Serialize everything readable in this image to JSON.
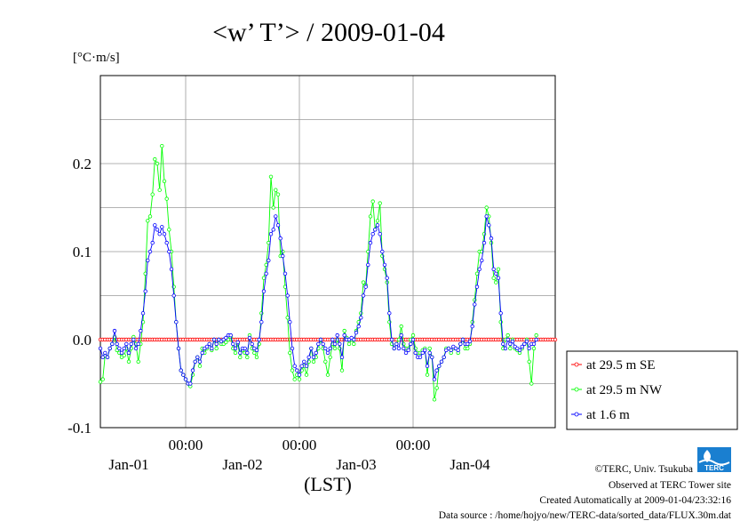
{
  "chart_data": {
    "type": "line",
    "title": "<w’ T’> / 2009-01-04",
    "ylabel": "[°C·m/s]",
    "xlabel": "(LST)",
    "ylim": [
      -0.1,
      0.3
    ],
    "yticks": [
      -0.1,
      0.0,
      0.1,
      0.2
    ],
    "ytick_labels": [
      "-0.1",
      "0.0",
      "0.1",
      "0.2"
    ],
    "x_unit": "hours since 2009-01-01 00:00 LST",
    "xlim": [
      -18,
      78
    ],
    "xticks": [
      0,
      24,
      48
    ],
    "xtick_labels": [
      "00:00",
      "00:00",
      "00:00"
    ],
    "day_labels": [
      {
        "label": "Jan-01",
        "x": -12
      },
      {
        "label": "Jan-02",
        "x": 12
      },
      {
        "label": "Jan-03",
        "x": 36
      },
      {
        "label": "Jan-04",
        "x": 60
      }
    ],
    "grid": true,
    "legend_position": "right",
    "series": [
      {
        "name": "at 29.5 m SE",
        "color": "#ff0000",
        "x_start": -18,
        "x_step": 0.5,
        "values": [
          0,
          0,
          0,
          0,
          0,
          0,
          0,
          0,
          0,
          0,
          0,
          0,
          0,
          0,
          0,
          0,
          0,
          0,
          0,
          0,
          0,
          0,
          0,
          0,
          0,
          0,
          0,
          0,
          0,
          0,
          0,
          0,
          0,
          0,
          0,
          0,
          0,
          0,
          0,
          0,
          0,
          0,
          0,
          0,
          0,
          0,
          0,
          0,
          0,
          0,
          0,
          0,
          0,
          0,
          0,
          0,
          0,
          0,
          0,
          0,
          0,
          0,
          0,
          0,
          0,
          0,
          0,
          0,
          0,
          0,
          0,
          0,
          0,
          0,
          0,
          0,
          0,
          0,
          0,
          0,
          0,
          0,
          0,
          0,
          0,
          0,
          0,
          0,
          0,
          0,
          0,
          0,
          0,
          0,
          0,
          0,
          0,
          0,
          0,
          0,
          0,
          0,
          0,
          0,
          0,
          0,
          0,
          0,
          0,
          0,
          0,
          0,
          0,
          0,
          0,
          0,
          0,
          0,
          0,
          0,
          0,
          0,
          0,
          0,
          0,
          0,
          0,
          0,
          0,
          0,
          0,
          0,
          0,
          0,
          0,
          0,
          0,
          0,
          0,
          0,
          0,
          0,
          0,
          0,
          0,
          0,
          0,
          0,
          0,
          0,
          0,
          0,
          0,
          0,
          0,
          0,
          0,
          0,
          0,
          0,
          0,
          0,
          0,
          0,
          0,
          0,
          0,
          0,
          0,
          0,
          0,
          0,
          0,
          0,
          0,
          0,
          0,
          0,
          0,
          0,
          0,
          0,
          0,
          0,
          0,
          0,
          0,
          0,
          0,
          0,
          0,
          0,
          0
        ]
      },
      {
        "name": "at 29.5 m NW",
        "color": "#00ff00",
        "x_start": -18,
        "x_step": 0.5,
        "values": [
          -0.048,
          -0.045,
          -0.018,
          -0.02,
          -0.01,
          -0.005,
          0.003,
          -0.012,
          -0.015,
          -0.02,
          -0.018,
          -0.01,
          -0.025,
          -0.01,
          0.003,
          -0.005,
          -0.025,
          -0.005,
          0.02,
          0.075,
          0.135,
          0.14,
          0.165,
          0.205,
          0.2,
          0.17,
          0.22,
          0.18,
          0.16,
          0.125,
          0.1,
          0.06,
          0.02,
          -0.01,
          -0.035,
          -0.04,
          -0.045,
          -0.05,
          -0.053,
          -0.04,
          -0.025,
          -0.02,
          -0.03,
          -0.01,
          -0.015,
          -0.01,
          -0.005,
          -0.012,
          0.0,
          -0.01,
          0.0,
          -0.005,
          -0.005,
          -0.003,
          0.0,
          0.003,
          -0.01,
          -0.015,
          -0.005,
          -0.02,
          -0.012,
          -0.015,
          -0.02,
          0.005,
          -0.01,
          -0.015,
          -0.02,
          -0.005,
          0.03,
          0.07,
          0.085,
          0.11,
          0.185,
          0.15,
          0.17,
          0.165,
          0.095,
          0.1,
          0.06,
          0.025,
          -0.015,
          -0.035,
          -0.045,
          -0.04,
          -0.045,
          -0.035,
          -0.03,
          -0.04,
          -0.025,
          -0.01,
          -0.025,
          -0.02,
          -0.01,
          0.0,
          -0.01,
          -0.025,
          -0.04,
          -0.02,
          -0.005,
          -0.01,
          0.0,
          -0.01,
          -0.035,
          0.01,
          0.002,
          -0.005,
          0.0,
          -0.005,
          0.01,
          0.02,
          0.03,
          0.065,
          0.062,
          0.1,
          0.14,
          0.157,
          0.125,
          0.135,
          0.155,
          0.095,
          0.08,
          0.065,
          0.02,
          -0.005,
          -0.01,
          -0.005,
          0.0,
          0.015,
          -0.005,
          -0.01,
          -0.01,
          0.0,
          0.005,
          -0.01,
          -0.015,
          -0.015,
          -0.012,
          -0.01,
          -0.04,
          -0.01,
          -0.02,
          -0.068,
          -0.055,
          -0.03,
          -0.025,
          -0.02,
          -0.01,
          -0.01,
          -0.015,
          -0.01,
          -0.01,
          -0.015,
          -0.005,
          0.0,
          -0.01,
          -0.01,
          -0.005,
          0.02,
          0.045,
          0.075,
          0.1,
          0.1,
          0.12,
          0.15,
          0.14,
          0.11,
          0.07,
          0.065,
          0.08,
          0.02,
          -0.01,
          0.0,
          0.005,
          -0.01,
          0.0,
          -0.01,
          -0.012,
          -0.015,
          -0.01,
          -0.005,
          0.0,
          -0.025,
          -0.05,
          -0.01,
          0.005
        ]
      },
      {
        "name": "at 1.6 m",
        "color": "#0000ff",
        "x_start": -18,
        "x_step": 0.5,
        "values": [
          -0.01,
          -0.02,
          -0.015,
          -0.02,
          -0.01,
          -0.005,
          0.01,
          -0.005,
          -0.01,
          -0.015,
          -0.01,
          -0.005,
          -0.015,
          -0.005,
          0.0,
          -0.01,
          -0.005,
          0.01,
          0.03,
          0.055,
          0.09,
          0.1,
          0.11,
          0.13,
          0.125,
          0.12,
          0.128,
          0.12,
          0.11,
          0.1,
          0.08,
          0.05,
          0.02,
          -0.01,
          -0.035,
          -0.04,
          -0.045,
          -0.05,
          -0.05,
          -0.035,
          -0.025,
          -0.02,
          -0.025,
          -0.015,
          -0.01,
          -0.008,
          -0.005,
          -0.01,
          0.0,
          -0.005,
          0.0,
          -0.002,
          0.0,
          0.002,
          0.005,
          0.005,
          -0.005,
          -0.01,
          -0.003,
          -0.015,
          -0.01,
          -0.01,
          -0.015,
          0.002,
          -0.005,
          -0.01,
          -0.012,
          0.0,
          0.02,
          0.055,
          0.075,
          0.09,
          0.12,
          0.125,
          0.14,
          0.13,
          0.115,
          0.095,
          0.075,
          0.05,
          0.02,
          -0.01,
          -0.03,
          -0.035,
          -0.04,
          -0.03,
          -0.025,
          -0.03,
          -0.02,
          -0.01,
          -0.02,
          -0.015,
          -0.005,
          0.0,
          -0.005,
          -0.01,
          -0.015,
          -0.01,
          0.0,
          -0.005,
          0.005,
          -0.005,
          -0.02,
          0.005,
          0.0,
          0.0,
          0.002,
          0.0,
          0.008,
          0.015,
          0.025,
          0.05,
          0.06,
          0.085,
          0.11,
          0.12,
          0.125,
          0.13,
          0.12,
          0.1,
          0.085,
          0.07,
          0.03,
          0.0,
          -0.01,
          -0.005,
          -0.01,
          0.005,
          -0.01,
          -0.015,
          -0.012,
          -0.005,
          0.0,
          -0.015,
          -0.02,
          -0.02,
          -0.015,
          -0.012,
          -0.03,
          -0.015,
          -0.02,
          -0.045,
          -0.035,
          -0.03,
          -0.025,
          -0.02,
          -0.012,
          -0.01,
          -0.012,
          -0.008,
          -0.01,
          -0.012,
          -0.005,
          0.0,
          -0.005,
          -0.005,
          -0.002,
          0.015,
          0.04,
          0.06,
          0.08,
          0.09,
          0.11,
          0.14,
          0.13,
          0.115,
          0.08,
          0.075,
          0.07,
          0.03,
          -0.005,
          -0.01,
          0.0,
          -0.005,
          -0.002,
          -0.008,
          -0.01,
          -0.012,
          -0.008,
          -0.005,
          -0.002,
          -0.01,
          -0.005,
          -0.005,
          0.0
        ]
      }
    ]
  },
  "credits": {
    "org": "©TERC, Univ. Tsukuba",
    "site": "Observed at TERC Tower site",
    "created": "Created Automatically at 2009-01-04/23:32:16",
    "source": "Data source : /home/hojyo/new/TERC-data/sorted_data/FLUX.30m.dat",
    "logo_text": "TERC"
  }
}
